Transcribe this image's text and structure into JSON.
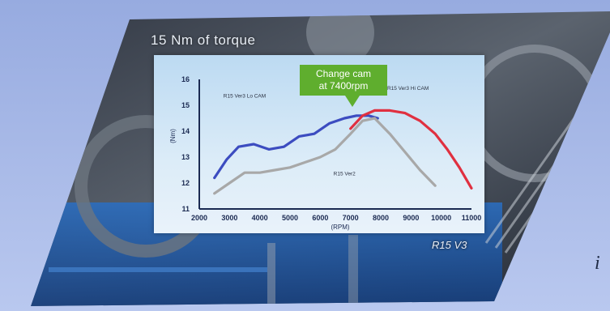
{
  "banner": {
    "headline": "15 Nm of torque",
    "mid_mark": "R15 V3",
    "side_mark": "i"
  },
  "callout": {
    "line1": "Change cam",
    "line2": "at 7400rpm"
  },
  "colors": {
    "low_cam": "#3c4cc0",
    "high_cam": "#e03040",
    "v2": "#a8a8a8",
    "callout": "#5fae2e"
  },
  "chart_data": {
    "type": "line",
    "xlabel": "(RPM)",
    "ylabel": "(Nm)",
    "xlim": [
      2000,
      11000
    ],
    "ylim": [
      11,
      16
    ],
    "x_ticks": [
      2000,
      3000,
      4000,
      5000,
      6000,
      7000,
      8000,
      9000,
      10000,
      11000
    ],
    "x_tick_labels": [
      "2000",
      "3000",
      "4000",
      "5000",
      "6000",
      "7000",
      "8000",
      "9000",
      "10000",
      "11000"
    ],
    "y_ticks": [
      11,
      12,
      13,
      14,
      15,
      16
    ],
    "y_tick_labels": [
      "11",
      "12",
      "13",
      "14",
      "15",
      "16"
    ],
    "series": [
      {
        "name": "R15 Ver3 Lo CAM",
        "color_key": "low_cam",
        "label_anchor": [
          3500,
          15.3
        ],
        "x": [
          2500,
          2900,
          3300,
          3800,
          4300,
          4800,
          5300,
          5800,
          6300,
          6800,
          7200,
          7600,
          7900
        ],
        "y": [
          12.2,
          12.9,
          13.4,
          13.5,
          13.3,
          13.4,
          13.8,
          13.9,
          14.3,
          14.5,
          14.6,
          14.6,
          14.5
        ]
      },
      {
        "name": "R15 Ver3 Hi CAM",
        "color_key": "high_cam",
        "label_anchor": [
          8900,
          15.6
        ],
        "x": [
          7000,
          7400,
          7800,
          8300,
          8800,
          9300,
          9800,
          10200,
          10600,
          11000
        ],
        "y": [
          14.1,
          14.6,
          14.8,
          14.8,
          14.7,
          14.4,
          13.9,
          13.3,
          12.6,
          11.8
        ]
      },
      {
        "name": "R15 Ver2",
        "color_key": "v2",
        "label_anchor": [
          6800,
          12.3
        ],
        "x": [
          2500,
          3000,
          3500,
          4000,
          4500,
          5000,
          5500,
          6000,
          6500,
          7000,
          7400,
          7800,
          8300,
          8800,
          9300,
          9800
        ],
        "y": [
          11.6,
          12.0,
          12.4,
          12.4,
          12.5,
          12.6,
          12.8,
          13.0,
          13.3,
          13.9,
          14.4,
          14.5,
          13.9,
          13.2,
          12.5,
          11.9
        ]
      }
    ]
  }
}
